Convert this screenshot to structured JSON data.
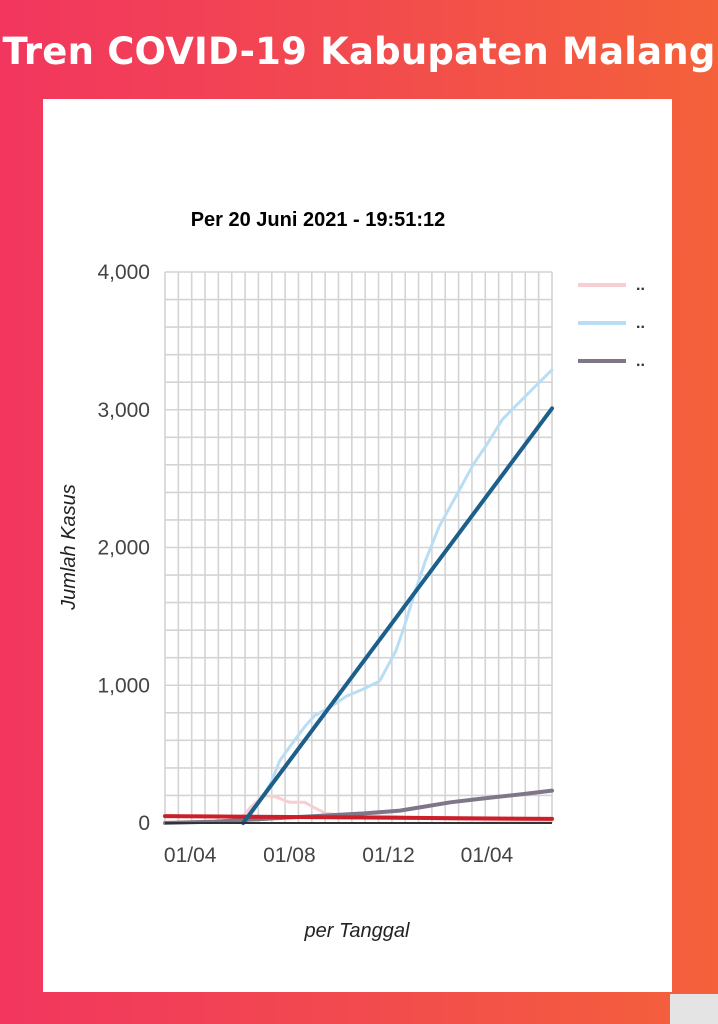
{
  "header": {
    "title": "Tren COVID-19 Kabupaten Malang"
  },
  "colors": {
    "background_start": "#f2365f",
    "background_end": "#f4613a",
    "card": "#ffffff"
  },
  "chart_data": {
    "type": "line",
    "title": "Per 20 Juni 2021 - 19:51:12",
    "xlabel": "per Tanggal",
    "ylabel": "Jumlah Kasus",
    "x_ticks": [
      "01/04",
      "01/08",
      "01/12",
      "01/04"
    ],
    "x_tick_dates": [
      "2020-04-01",
      "2020-08-01",
      "2020-12-01",
      "2021-04-01"
    ],
    "x_range": [
      "2020-03-01",
      "2021-06-20"
    ],
    "y_ticks": [
      "0",
      "1,000",
      "2,000",
      "3,000",
      "4,000"
    ],
    "y_tick_values": [
      0,
      1000,
      2000,
      3000,
      4000
    ],
    "ylim": [
      0,
      4000
    ],
    "grid": true,
    "legend_position": "right",
    "series": [
      {
        "name": "..",
        "color": "#f7cfd2",
        "width": 3,
        "points": [
          [
            "2020-03-01",
            5
          ],
          [
            "2020-04-01",
            8
          ],
          [
            "2020-05-01",
            10
          ],
          [
            "2020-06-01",
            20
          ],
          [
            "2020-06-15",
            120
          ],
          [
            "2020-07-01",
            200
          ],
          [
            "2020-07-15",
            190
          ],
          [
            "2020-08-01",
            150
          ],
          [
            "2020-08-20",
            150
          ],
          [
            "2020-09-01",
            110
          ],
          [
            "2020-09-15",
            70
          ],
          [
            "2020-10-01",
            60
          ],
          [
            "2020-11-01",
            50
          ],
          [
            "2020-12-01",
            50
          ],
          [
            "2021-02-01",
            30
          ],
          [
            "2021-04-01",
            20
          ],
          [
            "2021-06-20",
            15
          ]
        ]
      },
      {
        "name": "..",
        "color": "#b9def4",
        "width": 3,
        "points": [
          [
            "2020-03-01",
            2
          ],
          [
            "2020-05-01",
            5
          ],
          [
            "2020-06-10",
            20
          ],
          [
            "2020-06-25",
            150
          ],
          [
            "2020-07-10",
            300
          ],
          [
            "2020-07-20",
            450
          ],
          [
            "2020-08-01",
            550
          ],
          [
            "2020-08-20",
            700
          ],
          [
            "2020-09-01",
            780
          ],
          [
            "2020-09-20",
            840
          ],
          [
            "2020-10-10",
            920
          ],
          [
            "2020-10-30",
            970
          ],
          [
            "2020-11-20",
            1030
          ],
          [
            "2020-12-10",
            1250
          ],
          [
            "2020-12-20",
            1420
          ],
          [
            "2021-01-01",
            1650
          ],
          [
            "2021-01-15",
            1900
          ],
          [
            "2021-02-01",
            2150
          ],
          [
            "2021-02-15",
            2300
          ],
          [
            "2021-03-01",
            2450
          ],
          [
            "2021-03-15",
            2600
          ],
          [
            "2021-04-01",
            2750
          ],
          [
            "2021-04-20",
            2930
          ],
          [
            "2021-05-10",
            3050
          ],
          [
            "2021-06-01",
            3180
          ],
          [
            "2021-06-20",
            3290
          ]
        ]
      },
      {
        "name": "..",
        "color": "#7f7788",
        "width": 4,
        "points": [
          [
            "2020-03-01",
            0
          ],
          [
            "2020-05-01",
            10
          ],
          [
            "2020-07-01",
            30
          ],
          [
            "2020-09-01",
            50
          ],
          [
            "2020-11-01",
            70
          ],
          [
            "2020-12-15",
            90
          ],
          [
            "2021-01-15",
            120
          ],
          [
            "2021-02-15",
            150
          ],
          [
            "2021-03-15",
            170
          ],
          [
            "2021-04-15",
            190
          ],
          [
            "2021-05-15",
            210
          ],
          [
            "2021-06-20",
            235
          ]
        ]
      },
      {
        "color": "#cc1f2a",
        "width": 4,
        "points": [
          [
            "2020-03-01",
            50
          ],
          [
            "2021-06-20",
            30
          ]
        ]
      },
      {
        "color": "#1b5f8a",
        "width": 4,
        "points": [
          [
            "2020-06-05",
            0
          ],
          [
            "2021-06-20",
            3010
          ]
        ]
      }
    ]
  }
}
